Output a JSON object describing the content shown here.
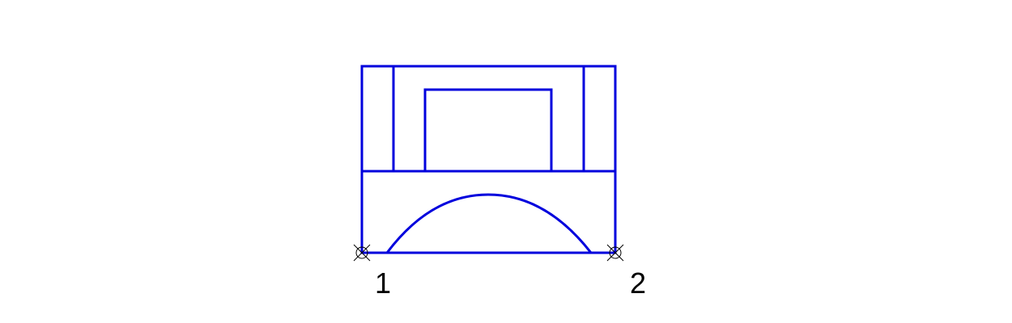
{
  "diagram": {
    "colors": {
      "stroke": "#0000dd",
      "marker": "#000000",
      "label": "#000000"
    },
    "points": [
      {
        "label": "1",
        "icon": "circle-cross-marker-icon"
      },
      {
        "label": "2",
        "icon": "circle-cross-marker-icon"
      }
    ]
  }
}
